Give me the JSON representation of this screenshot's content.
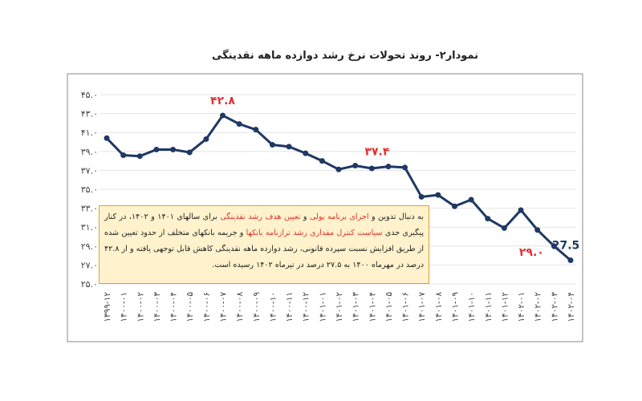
{
  "chart_data": {
    "type": "line",
    "title": "نمودار۲- روند تحولات نرخ رشد دوازده ماهه نقدینگی",
    "categories": [
      "۱۳۹۹-۱۲",
      "۱۴۰۰-۰۱",
      "۱۴۰۰-۰۲",
      "۱۴۰۰-۰۳",
      "۱۴۰۰-۰۴",
      "۱۴۰۰-۰۵",
      "۱۴۰۰-۰۶",
      "۱۴۰۰-۰۷",
      "۱۴۰۰-۰۸",
      "۱۴۰۰-۰۹",
      "۱۴۰۰-۱۰",
      "۱۴۰۰-۱۱",
      "۱۴۰۰-۱۲",
      "۱۴۰۱-۰۱",
      "۱۴۰۱-۰۲",
      "۱۴۰۱-۰۳",
      "۱۴۰۱-۰۴",
      "۱۴۰۱-۰۵",
      "۱۴۰۱-۰۶",
      "۱۴۰۱-۰۷",
      "۱۴۰۱-۰۸",
      "۱۴۰۱-۰۹",
      "۱۴۰۱-۱۰",
      "۱۴۰۱-۱۱",
      "۱۴۰۱-۱۲",
      "۱۴۰۲-۰۱",
      "۱۴۰۲-۰۲",
      "۱۴۰۲-۰۳",
      "۱۴۰۲-۰۴"
    ],
    "series": [
      {
        "color": "#1f3864",
        "values": [
          40.4,
          38.6,
          38.5,
          39.2,
          39.2,
          38.9,
          40.3,
          42.8,
          41.9,
          41.3,
          39.7,
          39.5,
          38.8,
          38.0,
          37.1,
          37.5,
          37.2,
          37.4,
          37.3,
          34.2,
          34.4,
          33.2,
          33.9,
          31.9,
          30.9,
          32.8,
          30.7,
          29.0,
          27.5
        ],
        "value_labels": [
          null,
          null,
          null,
          null,
          null,
          null,
          null,
          "۴۲.۸",
          null,
          null,
          null,
          null,
          null,
          null,
          null,
          null,
          null,
          "۳۷.۴",
          null,
          null,
          null,
          null,
          null,
          null,
          null,
          null,
          null,
          "۲۹.۰",
          "27.5"
        ]
      }
    ],
    "label_color": "#e03030",
    "ylim": [
      25,
      45
    ],
    "yticks": [
      {
        "value": 25,
        "label": "۲۵.۰"
      },
      {
        "value": 27,
        "label": "۲۷.۰"
      },
      {
        "value": 29,
        "label": "۲۹.۰"
      },
      {
        "value": 31,
        "label": "۳۱.۰"
      },
      {
        "value": 33,
        "label": "۳۳.۰"
      },
      {
        "value": 35,
        "label": "۳۵.۰"
      },
      {
        "value": 37,
        "label": "۳۷.۰"
      },
      {
        "value": 39,
        "label": "۳۹.۰"
      },
      {
        "value": 41,
        "label": "۴۱.۰"
      },
      {
        "value": 43,
        "label": "۴۳.۰"
      },
      {
        "value": 45,
        "label": "۴۵.۰"
      }
    ],
    "grid": true,
    "annotation": [
      {
        "text": "به دنبال تدوین و "
      },
      {
        "text": "اجرای برنامه پولی",
        "color": "#e03030"
      },
      {
        "text": " و "
      },
      {
        "text": "تعیین هدف رشد نقدینگی",
        "color": "#e03030"
      },
      {
        "text": " برای سالهای ۱۴۰۱ و ۱۴۰۲، در کنار پیگیری جدی "
      },
      {
        "text": "سیاست کنترل مقداری رشد ترازنامه بانکها",
        "color": "#e03030"
      },
      {
        "text": " و جریمه بانکهای متخلف از حدود تعیین شده از طریق افزایش نسبت سپرده قانونی، رشد دوازده ماهه نقدینگی کاهش قابل توجهی یافته و از ۴۲.۸ درصد در مهرماه ۱۴۰۰ به ۲۷.۵ درصد در تیرماه ۱۴۰۲ رسیده است."
      }
    ]
  }
}
